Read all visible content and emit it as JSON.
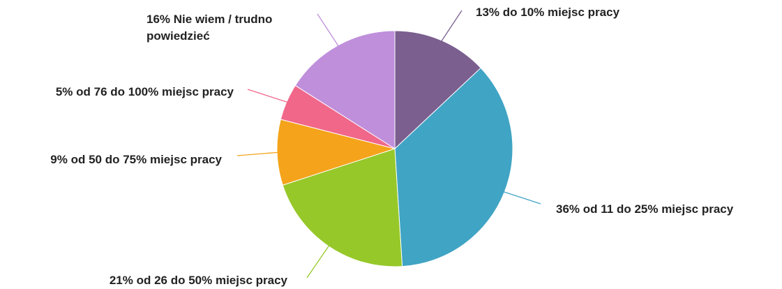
{
  "chart_data": {
    "type": "pie",
    "categories": [
      "do 10% miejsc pracy",
      "od 11 do 25% miejsc pracy",
      "od 26 do 50% miejsc pracy",
      "od 50 do 75% miejsc pracy",
      "od 76 do 100% miejsc pracy",
      "Nie wiem / trudno powiedzieć"
    ],
    "values": [
      13,
      36,
      21,
      9,
      5,
      16
    ],
    "value_labels": [
      "13%",
      "36%",
      "21%",
      "9%",
      "5%",
      "16%"
    ],
    "colors": [
      "#7b5f8f",
      "#40a4c4",
      "#96c829",
      "#f4a31b",
      "#f0678a",
      "#bf8fdb"
    ]
  }
}
